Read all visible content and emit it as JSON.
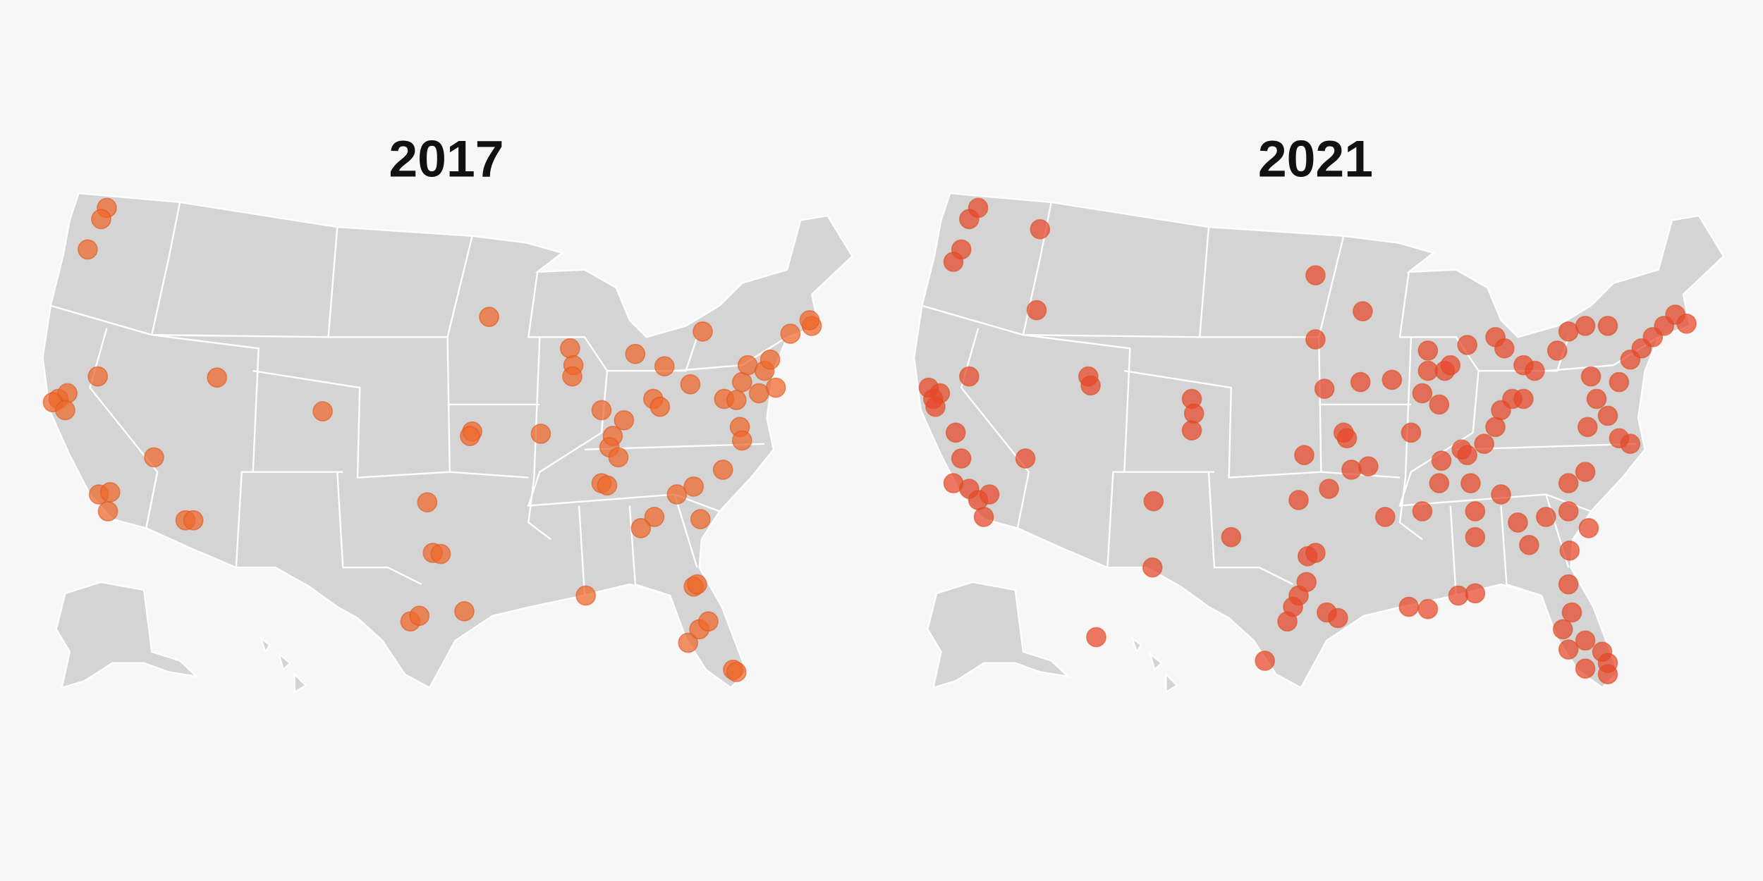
{
  "maps": [
    {
      "title": "2017"
    },
    {
      "title": "2021"
    }
  ]
}
